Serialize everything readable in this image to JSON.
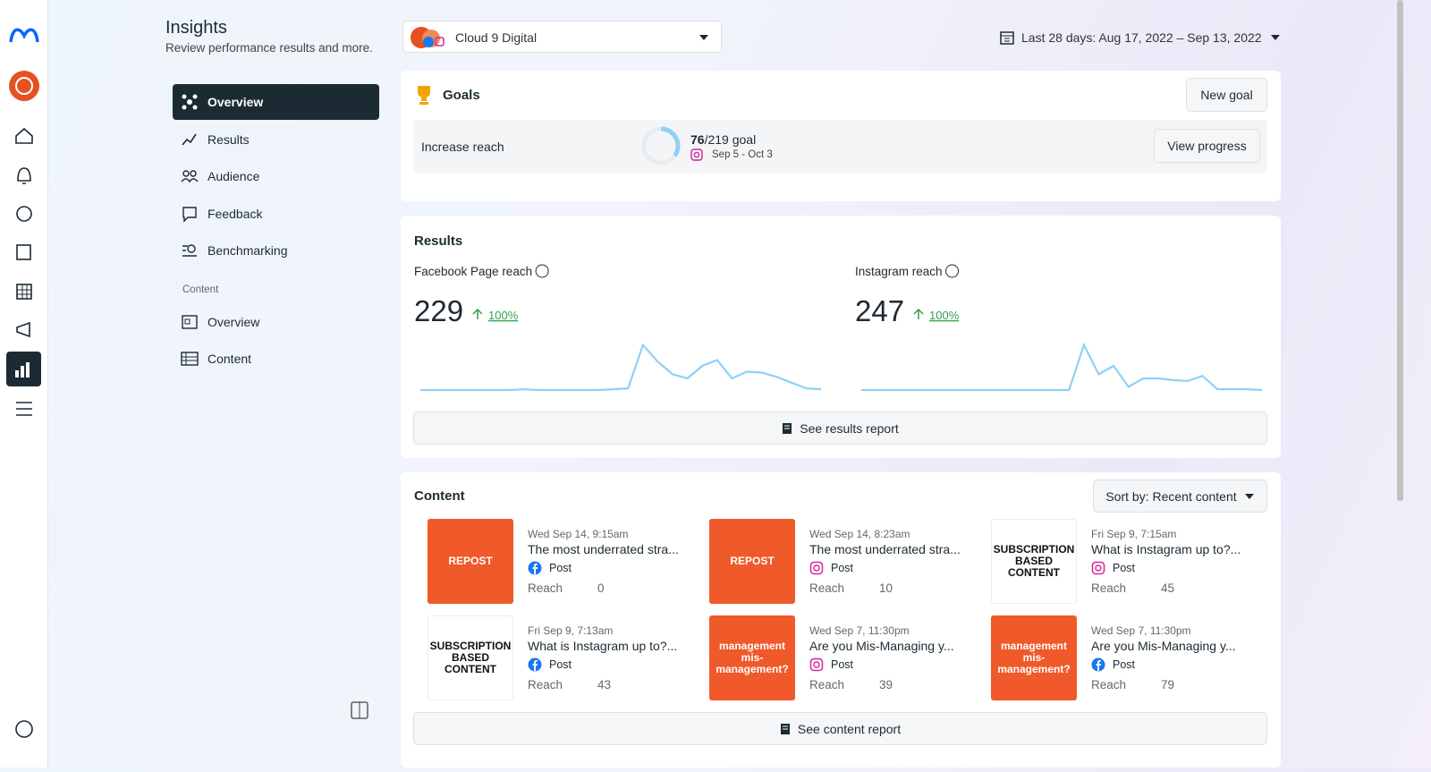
{
  "header": {
    "title": "Insights",
    "subtitle": "Review performance results and more."
  },
  "account": {
    "name": "Cloud 9 Digital"
  },
  "date_range": "Last 28 days: Aug 17, 2022 – Sep 13, 2022",
  "nav": {
    "items": [
      "Overview",
      "Results",
      "Audience",
      "Feedback",
      "Benchmarking"
    ],
    "section": "Content",
    "content_items": [
      "Overview",
      "Content"
    ]
  },
  "goals": {
    "title": "Goals",
    "new_goal": "New goal",
    "goal": {
      "name": "Increase reach",
      "current": 76,
      "target": 219,
      "target_label": "/219 goal",
      "dates": "Sep 5 - Oct 3",
      "button": "View progress"
    }
  },
  "results": {
    "title": "Results",
    "ylim": [
      0,
      60
    ],
    "metrics": [
      {
        "label": "Facebook Page reach",
        "value": 229,
        "change": "100%",
        "values": [
          1,
          1,
          1,
          1,
          1,
          1,
          1,
          2,
          1,
          1,
          1,
          1,
          1,
          2,
          3,
          55,
          35,
          20,
          15,
          30,
          37,
          15,
          23,
          22,
          17,
          10,
          3,
          2
        ]
      },
      {
        "label": "Instagram reach",
        "value": 247,
        "change": "100%",
        "values": [
          1,
          1,
          1,
          1,
          1,
          1,
          1,
          1,
          1,
          1,
          1,
          1,
          1,
          1,
          1,
          55,
          20,
          30,
          5,
          15,
          15,
          13,
          12,
          18,
          2,
          2,
          2,
          1
        ]
      }
    ],
    "button": "See results report"
  },
  "content": {
    "title": "Content",
    "sort": "Sort by: Recent content",
    "button": "See content report",
    "posts": [
      {
        "date": "Wed Sep 14, 9:15am",
        "title": "The most underrated stra...",
        "type": "Post",
        "platform": "facebook",
        "metric": "Reach",
        "value": 0,
        "thumb": [
          "REPOST"
        ],
        "thumb_style": "orange"
      },
      {
        "date": "Wed Sep 14, 8:23am",
        "title": "The most underrated stra...",
        "type": "Post",
        "platform": "instagram",
        "metric": "Reach",
        "value": 10,
        "thumb": [
          "REPOST"
        ],
        "thumb_style": "orange"
      },
      {
        "date": "Fri Sep 9, 7:15am",
        "title": "What is Instagram up to?...",
        "type": "Post",
        "platform": "instagram",
        "metric": "Reach",
        "value": 45,
        "thumb": [
          "SUBSCRIPTION",
          "BASED",
          "CONTENT"
        ],
        "thumb_style": "white"
      },
      {
        "date": "Fri Sep 9, 7:13am",
        "title": "What is Instagram up to?...",
        "type": "Post",
        "platform": "facebook",
        "metric": "Reach",
        "value": 43,
        "thumb": [
          "SUBSCRIPTION",
          "BASED",
          "CONTENT"
        ],
        "thumb_style": "white"
      },
      {
        "date": "Wed Sep 7, 11:30pm",
        "title": "Are you Mis-Managing y...",
        "type": "Post",
        "platform": "instagram",
        "metric": "Reach",
        "value": 39,
        "thumb": [
          "management",
          "mis-",
          "management?"
        ],
        "thumb_style": "orange"
      },
      {
        "date": "Wed Sep 7, 11:30pm",
        "title": "Are you Mis-Managing y...",
        "type": "Post",
        "platform": "facebook",
        "metric": "Reach",
        "value": 79,
        "thumb": [
          "management",
          "mis-",
          "management?"
        ],
        "thumb_style": "orange"
      }
    ]
  }
}
